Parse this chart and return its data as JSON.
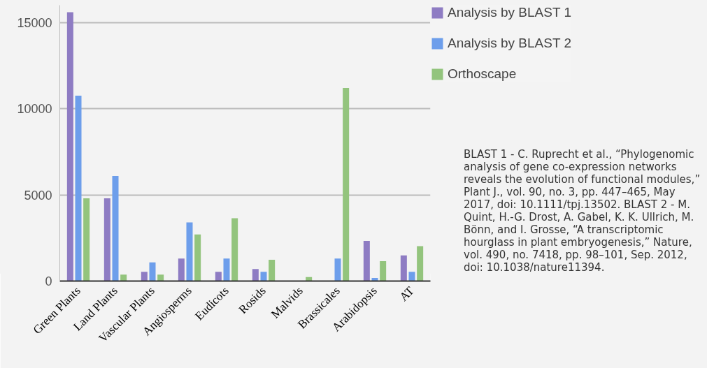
{
  "chart_data": {
    "type": "bar",
    "categories": [
      "Green Plants",
      "Land Plants",
      "Vascular Plants",
      "Angiosperms",
      "Eudicots",
      "Rosids",
      "Malvids",
      "Brassicales",
      "Arabidopsis",
      "AT"
    ],
    "series": [
      {
        "name": "Analysis by BLAST 1",
        "color": "#8e7cc3",
        "values": [
          15600,
          4800,
          540,
          1310,
          540,
          700,
          0,
          0,
          2330,
          1490
        ]
      },
      {
        "name": "Analysis by BLAST 2",
        "color": "#6d9eeb",
        "values": [
          10750,
          6100,
          1080,
          3400,
          1310,
          540,
          0,
          1310,
          180,
          540
        ]
      },
      {
        "name": "Orthoscape",
        "color": "#93c47d",
        "values": [
          4800,
          370,
          370,
          2700,
          3650,
          1240,
          230,
          11200,
          1150,
          2030
        ]
      }
    ],
    "ylim": [
      0,
      16000
    ],
    "yticks": [
      0,
      5000,
      10000,
      15000
    ],
    "grid": "y",
    "legend": "top right",
    "annotations": [
      "BLAST 1 - C. Ruprecht et al., “Phylogenomic analysis of gene co-expression networks reveals the evolution of functional modules,” Plant J., vol. 90, no. 3, pp. 447–465, May 2017, doi: 10.1111/tpj.13502. BLAST 2 - M. Quint, H.-G. Drost, A. Gabel, K. K. Ullrich, M. Bönn, and I. Grosse, “A transcriptomic hourglass in plant embryogenesis,” Nature, vol. 490, no. 7418, pp. 98–101, Sep. 2012, doi: 10.1038/nature11394."
    ]
  }
}
